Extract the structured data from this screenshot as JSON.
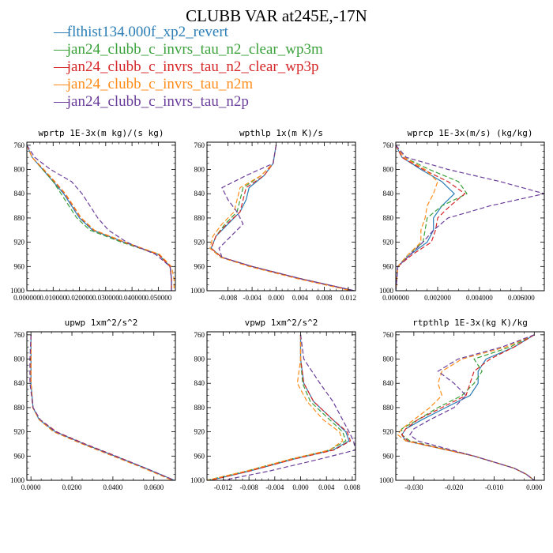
{
  "title": "CLUBB VAR at245E,-17N",
  "legend": [
    {
      "label": "flthist134.000f_xp2_revert",
      "color": "#2a7db5",
      "dash": "none"
    },
    {
      "label": "jan24_clubb_c_invrs_tau_n2_clear_wp3m",
      "color": "#3aa13a",
      "dash": "6,3"
    },
    {
      "label": "jan24_clubb_c_invrs_tau_n2_clear_wp3p",
      "color": "#d62728",
      "dash": "6,3"
    },
    {
      "label": "jan24_clubb_c_invrs_tau_n2m",
      "color": "#ff8c1a",
      "dash": "6,3"
    },
    {
      "label": "jan24_clubb_c_invrs_tau_n2p",
      "color": "#6a3d9a",
      "dash": "6,3"
    }
  ],
  "chart_data": [
    {
      "type": "line",
      "title": "wprtp  1E-3x(m kg)/(s kg)",
      "xlim": [
        0,
        0.0565
      ],
      "ylim": [
        1000,
        755
      ],
      "xticks": [
        0,
        0.01,
        0.02,
        0.03,
        0.04,
        0.05
      ],
      "xtick_labels": [
        "0.000000",
        "0.010000",
        "0.020000",
        "0.030000",
        "0.040000",
        "0.050000"
      ],
      "yticks": [
        760,
        800,
        840,
        880,
        920,
        960,
        1000
      ],
      "y": [
        760,
        780,
        800,
        820,
        840,
        860,
        880,
        900,
        920,
        940,
        960,
        980,
        1000
      ],
      "series": [
        {
          "values": [
            0.0,
            0.002,
            0.006,
            0.01,
            0.014,
            0.017,
            0.02,
            0.025,
            0.037,
            0.05,
            0.0545,
            0.055,
            0.055
          ]
        },
        {
          "values": [
            0.0,
            0.002,
            0.006,
            0.01,
            0.013,
            0.016,
            0.019,
            0.024,
            0.036,
            0.05,
            0.0545,
            0.055,
            0.055
          ]
        },
        {
          "values": [
            0.0,
            0.002,
            0.0063,
            0.0105,
            0.0145,
            0.0175,
            0.0205,
            0.0255,
            0.037,
            0.05,
            0.0545,
            0.055,
            0.055
          ]
        },
        {
          "values": [
            0.0,
            0.002,
            0.0065,
            0.0107,
            0.0147,
            0.0177,
            0.0207,
            0.0257,
            0.0375,
            0.0505,
            0.055,
            0.056,
            0.056
          ]
        },
        {
          "values": [
            0.0,
            0.003,
            0.009,
            0.017,
            0.021,
            0.024,
            0.027,
            0.031,
            0.038,
            0.049,
            0.0545,
            0.055,
            0.055
          ]
        }
      ]
    },
    {
      "type": "line",
      "title": "wpthlp  1x(m K)/s",
      "xlim": [
        -0.0115,
        0.0132
      ],
      "ylim": [
        1000,
        755
      ],
      "xticks": [
        -0.008,
        -0.004,
        0,
        0.004,
        0.008,
        0.012
      ],
      "xtick_labels": [
        "-0.008",
        "-0.004",
        "0.000",
        "0.004",
        "0.008",
        "0.012"
      ],
      "yticks": [
        760,
        800,
        840,
        880,
        920,
        960,
        1000
      ],
      "y": [
        760,
        790,
        810,
        830,
        850,
        870,
        890,
        910,
        930,
        945,
        960,
        980,
        1000
      ],
      "series": [
        {
          "values": [
            0.0,
            -0.0005,
            -0.002,
            -0.0045,
            -0.005,
            -0.006,
            -0.008,
            -0.01,
            -0.0108,
            -0.009,
            -0.004,
            0.004,
            0.013
          ]
        },
        {
          "values": [
            0.0,
            -0.0005,
            -0.0025,
            -0.0055,
            -0.006,
            -0.0065,
            -0.0085,
            -0.01,
            -0.0108,
            -0.009,
            -0.004,
            0.004,
            0.013
          ]
        },
        {
          "values": [
            0.0,
            -0.0005,
            -0.002,
            -0.005,
            -0.0055,
            -0.006,
            -0.0082,
            -0.01,
            -0.0108,
            -0.009,
            -0.004,
            0.004,
            0.013
          ]
        },
        {
          "values": [
            0.0,
            -0.0005,
            -0.0025,
            -0.006,
            -0.0065,
            -0.007,
            -0.009,
            -0.0105,
            -0.011,
            -0.0092,
            -0.0045,
            0.0035,
            0.0125
          ]
        },
        {
          "values": [
            0.0,
            -0.0005,
            -0.005,
            -0.009,
            -0.008,
            -0.0065,
            -0.0055,
            -0.0075,
            -0.0095,
            -0.009,
            -0.004,
            0.004,
            0.013
          ]
        }
      ]
    },
    {
      "type": "line",
      "title": "wprcp  1E-3x(m/s) (kg/kg)",
      "xlim": [
        0,
        0.0071
      ],
      "ylim": [
        1000,
        755
      ],
      "xticks": [
        0,
        0.002,
        0.004,
        0.006
      ],
      "xtick_labels": [
        "0.000000",
        "0.002000",
        "0.004000",
        "0.006000"
      ],
      "yticks": [
        760,
        800,
        840,
        880,
        920,
        960,
        1000
      ],
      "y": [
        760,
        780,
        800,
        820,
        840,
        860,
        880,
        900,
        920,
        940,
        960,
        1000
      ],
      "series": [
        {
          "values": [
            0.0,
            0.0003,
            0.0012,
            0.0022,
            0.0028,
            0.0022,
            0.0018,
            0.0018,
            0.0015,
            0.0007,
            0.0001,
            0.0
          ]
        },
        {
          "values": [
            0.0,
            0.0004,
            0.0016,
            0.003,
            0.0034,
            0.0022,
            0.0015,
            0.0014,
            0.0013,
            0.0006,
            0.0001,
            0.0
          ]
        },
        {
          "values": [
            0.0,
            0.0003,
            0.0013,
            0.0025,
            0.0033,
            0.0026,
            0.002,
            0.0019,
            0.0017,
            0.0008,
            0.0001,
            0.0
          ]
        },
        {
          "values": [
            0.0,
            0.0004,
            0.0014,
            0.002,
            0.0018,
            0.0015,
            0.0014,
            0.0012,
            0.0012,
            0.0006,
            0.0001,
            0.0
          ]
        },
        {
          "values": [
            0.0,
            0.0005,
            0.0025,
            0.005,
            0.0071,
            0.0045,
            0.0025,
            0.0018,
            0.0013,
            0.0007,
            0.0001,
            0.0
          ]
        }
      ]
    },
    {
      "type": "line",
      "title": "upwp  1xm^2/s^2",
      "xlim": [
        -0.002,
        0.0705
      ],
      "ylim": [
        1000,
        755
      ],
      "xticks": [
        0,
        0.02,
        0.04,
        0.06
      ],
      "xtick_labels": [
        "0.0000",
        "0.0200",
        "0.0400",
        "0.0600"
      ],
      "yticks": [
        760,
        800,
        840,
        880,
        920,
        960,
        1000
      ],
      "y": [
        760,
        800,
        840,
        880,
        900,
        920,
        940,
        960,
        980,
        1000
      ],
      "series": [
        {
          "values": [
            0.0,
            0.0,
            0.0,
            0.001,
            0.004,
            0.012,
            0.026,
            0.041,
            0.056,
            0.07
          ]
        },
        {
          "values": [
            0.0,
            0.0,
            0.0,
            0.001,
            0.004,
            0.0115,
            0.0255,
            0.0405,
            0.0555,
            0.0695
          ]
        },
        {
          "values": [
            0.0,
            0.0,
            0.0,
            0.001,
            0.0045,
            0.0125,
            0.0265,
            0.0415,
            0.056,
            0.07
          ]
        },
        {
          "values": [
            0.0,
            0.0,
            0.0,
            0.0008,
            0.004,
            0.011,
            0.025,
            0.04,
            0.055,
            0.069
          ]
        },
        {
          "values": [
            0.0,
            -0.0005,
            -0.0005,
            0.001,
            0.0045,
            0.012,
            0.026,
            0.041,
            0.056,
            0.07
          ]
        }
      ]
    },
    {
      "type": "line",
      "title": "vpwp  1xm^2/s^2",
      "xlim": [
        -0.0145,
        0.0085
      ],
      "ylim": [
        1000,
        755
      ],
      "xticks": [
        -0.012,
        -0.008,
        -0.004,
        0,
        0.004,
        0.008
      ],
      "xtick_labels": [
        "-0.012",
        "-0.008",
        "-0.004",
        "0.000",
        "0.004",
        "0.008"
      ],
      "yticks": [
        760,
        800,
        840,
        880,
        920,
        960,
        1000
      ],
      "y": [
        760,
        800,
        840,
        870,
        900,
        920,
        935,
        950,
        965,
        985,
        1000
      ],
      "series": [
        {
          "values": [
            0.0,
            0.0,
            0.0005,
            0.002,
            0.005,
            0.007,
            0.0075,
            0.005,
            -0.001,
            -0.008,
            -0.014
          ]
        },
        {
          "values": [
            0.0,
            0.0,
            0.0003,
            0.0015,
            0.0045,
            0.0065,
            0.007,
            0.0045,
            -0.0015,
            -0.0085,
            -0.0145
          ]
        },
        {
          "values": [
            0.0,
            0.0,
            0.0005,
            0.002,
            0.005,
            0.0072,
            0.0077,
            0.0052,
            -0.001,
            -0.008,
            -0.014
          ]
        },
        {
          "values": [
            0.0,
            0.0,
            -0.0005,
            0.001,
            0.0035,
            0.006,
            0.0065,
            0.0045,
            -0.0015,
            -0.0085,
            -0.0145
          ]
        },
        {
          "values": [
            0.0,
            0.0005,
            0.003,
            0.005,
            0.0065,
            0.0075,
            0.0082,
            0.0085,
            0.003,
            -0.005,
            -0.012
          ]
        }
      ]
    },
    {
      "type": "line",
      "title": "rtpthlp  1E-3x(kg K)/kg",
      "xlim": [
        -0.0345,
        0.0025
      ],
      "ylim": [
        1000,
        755
      ],
      "xticks": [
        -0.03,
        -0.02,
        -0.01,
        0
      ],
      "xtick_labels": [
        "-0.030",
        "-0.020",
        "-0.010",
        "0.000"
      ],
      "yticks": [
        760,
        800,
        840,
        880,
        920,
        960,
        1000
      ],
      "y": [
        760,
        780,
        800,
        820,
        840,
        860,
        880,
        900,
        915,
        925,
        935,
        960,
        980,
        990,
        1000
      ],
      "series": [
        {
          "values": [
            0.0,
            -0.005,
            -0.012,
            -0.014,
            -0.014,
            -0.016,
            -0.022,
            -0.028,
            -0.032,
            -0.033,
            -0.032,
            -0.015,
            -0.005,
            -0.002,
            0.0
          ]
        },
        {
          "values": [
            0.0,
            -0.006,
            -0.015,
            -0.013,
            -0.015,
            -0.018,
            -0.024,
            -0.029,
            -0.033,
            -0.033,
            -0.031,
            -0.015,
            -0.005,
            -0.002,
            0.0
          ]
        },
        {
          "values": [
            0.0,
            -0.005,
            -0.011,
            -0.015,
            -0.016,
            -0.017,
            -0.023,
            -0.029,
            -0.032,
            -0.033,
            -0.0315,
            -0.015,
            -0.005,
            -0.002,
            0.0
          ]
        },
        {
          "values": [
            0.0,
            -0.007,
            -0.018,
            -0.023,
            -0.024,
            -0.023,
            -0.026,
            -0.03,
            -0.033,
            -0.034,
            -0.032,
            -0.015,
            -0.005,
            -0.002,
            0.0
          ]
        },
        {
          "values": [
            0.0,
            -0.008,
            -0.019,
            -0.024,
            -0.02,
            -0.017,
            -0.02,
            -0.026,
            -0.03,
            -0.031,
            -0.029,
            -0.015,
            -0.005,
            -0.002,
            0.0
          ]
        }
      ]
    }
  ]
}
